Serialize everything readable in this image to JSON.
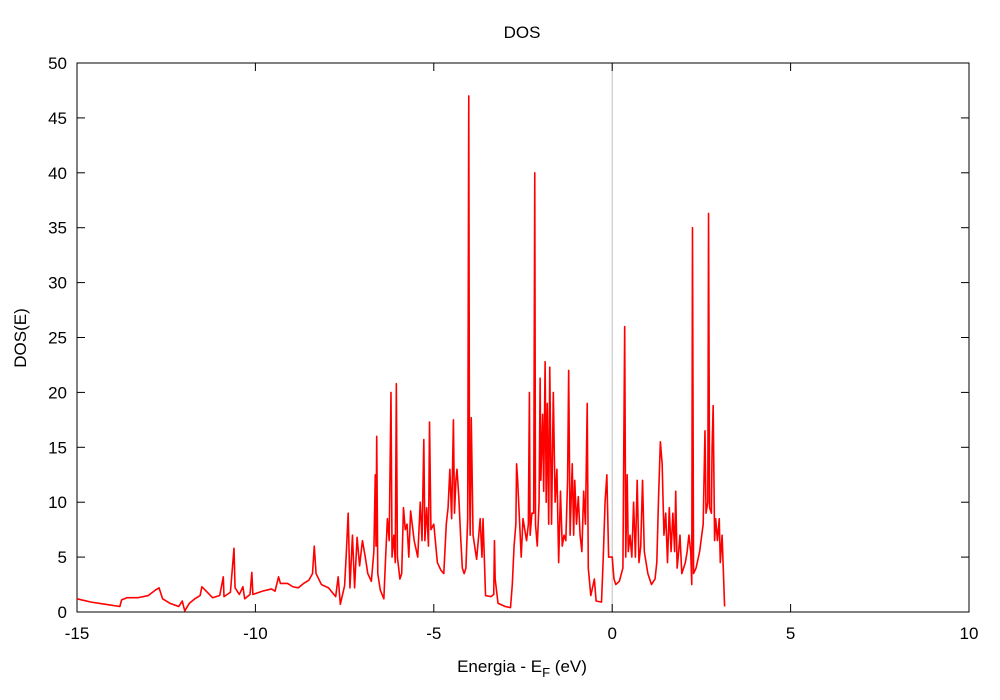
{
  "chart_data": {
    "type": "line",
    "title": "DOS",
    "xlabel": {
      "main": "Energia - E",
      "sub": "F",
      "suffix": " (eV)"
    },
    "ylabel": "DOS(E)",
    "xlim": [
      -15,
      10
    ],
    "ylim": [
      0,
      50
    ],
    "xticks": [
      -15,
      -10,
      -5,
      0,
      5,
      10
    ],
    "yticks": [
      0,
      5,
      10,
      15,
      20,
      25,
      30,
      35,
      40,
      45,
      50
    ],
    "grid": false,
    "legend": "none",
    "reference_line": {
      "x": 0,
      "color": "#c0c0c0"
    },
    "series": [
      {
        "color": "#ff0000",
        "points": [
          [
            -15.0,
            1.2
          ],
          [
            -14.6,
            0.9
          ],
          [
            -14.2,
            0.7
          ],
          [
            -13.8,
            0.5
          ],
          [
            -13.75,
            1.1
          ],
          [
            -13.6,
            1.3
          ],
          [
            -13.3,
            1.3
          ],
          [
            -13.0,
            1.5
          ],
          [
            -12.8,
            2.0
          ],
          [
            -12.7,
            2.2
          ],
          [
            -12.6,
            1.2
          ],
          [
            -12.4,
            0.8
          ],
          [
            -12.15,
            0.5
          ],
          [
            -12.05,
            1.0
          ],
          [
            -11.98,
            0.1
          ],
          [
            -11.85,
            0.8
          ],
          [
            -11.7,
            1.2
          ],
          [
            -11.55,
            1.5
          ],
          [
            -11.5,
            2.3
          ],
          [
            -11.35,
            1.8
          ],
          [
            -11.2,
            1.3
          ],
          [
            -11.0,
            1.5
          ],
          [
            -10.9,
            3.2
          ],
          [
            -10.88,
            1.4
          ],
          [
            -10.7,
            1.8
          ],
          [
            -10.6,
            5.8
          ],
          [
            -10.57,
            2.2
          ],
          [
            -10.45,
            1.6
          ],
          [
            -10.35,
            2.3
          ],
          [
            -10.3,
            1.2
          ],
          [
            -10.15,
            1.6
          ],
          [
            -10.1,
            3.6
          ],
          [
            -10.07,
            1.6
          ],
          [
            -9.8,
            1.9
          ],
          [
            -9.55,
            2.1
          ],
          [
            -9.45,
            1.9
          ],
          [
            -9.35,
            3.2
          ],
          [
            -9.3,
            2.6
          ],
          [
            -9.1,
            2.6
          ],
          [
            -8.95,
            2.3
          ],
          [
            -8.8,
            2.2
          ],
          [
            -8.65,
            2.6
          ],
          [
            -8.5,
            2.9
          ],
          [
            -8.4,
            3.5
          ],
          [
            -8.35,
            6.0
          ],
          [
            -8.3,
            3.5
          ],
          [
            -8.15,
            2.5
          ],
          [
            -7.95,
            2.2
          ],
          [
            -7.75,
            1.4
          ],
          [
            -7.68,
            3.2
          ],
          [
            -7.62,
            0.7
          ],
          [
            -7.5,
            2.4
          ],
          [
            -7.45,
            5.5
          ],
          [
            -7.4,
            9.0
          ],
          [
            -7.35,
            2.2
          ],
          [
            -7.28,
            7.0
          ],
          [
            -7.22,
            2.2
          ],
          [
            -7.15,
            6.8
          ],
          [
            -7.08,
            4.2
          ],
          [
            -7.0,
            6.5
          ],
          [
            -6.92,
            5.0
          ],
          [
            -6.85,
            3.5
          ],
          [
            -6.75,
            2.8
          ],
          [
            -6.68,
            5.5
          ],
          [
            -6.64,
            12.5
          ],
          [
            -6.62,
            6.0
          ],
          [
            -6.6,
            16.0
          ],
          [
            -6.57,
            3.5
          ],
          [
            -6.5,
            2.0
          ],
          [
            -6.4,
            1.2
          ],
          [
            -6.35,
            5.0
          ],
          [
            -6.3,
            8.5
          ],
          [
            -6.25,
            6.5
          ],
          [
            -6.2,
            20.0
          ],
          [
            -6.17,
            5.0
          ],
          [
            -6.12,
            7.0
          ],
          [
            -6.08,
            4.5
          ],
          [
            -6.05,
            20.8
          ],
          [
            -6.02,
            5.0
          ],
          [
            -5.95,
            3.0
          ],
          [
            -5.9,
            3.5
          ],
          [
            -5.85,
            9.5
          ],
          [
            -5.8,
            7.5
          ],
          [
            -5.75,
            8.0
          ],
          [
            -5.7,
            5.0
          ],
          [
            -5.65,
            9.2
          ],
          [
            -5.55,
            6.5
          ],
          [
            -5.45,
            5.0
          ],
          [
            -5.38,
            10.0
          ],
          [
            -5.33,
            6.5
          ],
          [
            -5.28,
            15.7
          ],
          [
            -5.25,
            6.5
          ],
          [
            -5.2,
            9.5
          ],
          [
            -5.15,
            6.0
          ],
          [
            -5.12,
            17.3
          ],
          [
            -5.08,
            7.5
          ],
          [
            -5.0,
            8.0
          ],
          [
            -4.9,
            4.5
          ],
          [
            -4.8,
            3.8
          ],
          [
            -4.72,
            3.5
          ],
          [
            -4.65,
            8.0
          ],
          [
            -4.6,
            9.5
          ],
          [
            -4.55,
            13.0
          ],
          [
            -4.5,
            8.5
          ],
          [
            -4.45,
            17.5
          ],
          [
            -4.42,
            9.0
          ],
          [
            -4.38,
            12.0
          ],
          [
            -4.35,
            13.0
          ],
          [
            -4.3,
            10.5
          ],
          [
            -4.25,
            7.0
          ],
          [
            -4.2,
            4.0
          ],
          [
            -4.15,
            3.5
          ],
          [
            -4.1,
            4.0
          ],
          [
            -4.05,
            8.5
          ],
          [
            -4.02,
            47.0
          ],
          [
            -4.0,
            12.0
          ],
          [
            -3.98,
            7.0
          ],
          [
            -3.95,
            17.7
          ],
          [
            -3.9,
            7.0
          ],
          [
            -3.8,
            4.8
          ],
          [
            -3.7,
            8.5
          ],
          [
            -3.65,
            5.0
          ],
          [
            -3.62,
            8.5
          ],
          [
            -3.58,
            4.5
          ],
          [
            -3.55,
            1.5
          ],
          [
            -3.4,
            1.4
          ],
          [
            -3.32,
            1.6
          ],
          [
            -3.3,
            6.5
          ],
          [
            -3.28,
            3.0
          ],
          [
            -3.2,
            0.8
          ],
          [
            -3.0,
            0.5
          ],
          [
            -2.85,
            0.4
          ],
          [
            -2.8,
            2.5
          ],
          [
            -2.75,
            6.0
          ],
          [
            -2.7,
            8.0
          ],
          [
            -2.68,
            13.5
          ],
          [
            -2.65,
            12.0
          ],
          [
            -2.6,
            8.5
          ],
          [
            -2.55,
            5.0
          ],
          [
            -2.5,
            8.5
          ],
          [
            -2.45,
            7.5
          ],
          [
            -2.4,
            6.5
          ],
          [
            -2.35,
            8.0
          ],
          [
            -2.32,
            20.0
          ],
          [
            -2.3,
            7.0
          ],
          [
            -2.25,
            9.0
          ],
          [
            -2.2,
            9.0
          ],
          [
            -2.17,
            40.0
          ],
          [
            -2.15,
            8.0
          ],
          [
            -2.1,
            6.0
          ],
          [
            -2.05,
            10.0
          ],
          [
            -2.02,
            21.3
          ],
          [
            -2.0,
            12.0
          ],
          [
            -1.95,
            18.0
          ],
          [
            -1.92,
            11.0
          ],
          [
            -1.88,
            22.8
          ],
          [
            -1.85,
            10.0
          ],
          [
            -1.82,
            19.0
          ],
          [
            -1.78,
            8.0
          ],
          [
            -1.75,
            22.3
          ],
          [
            -1.7,
            8.0
          ],
          [
            -1.65,
            20.0
          ],
          [
            -1.6,
            10.0
          ],
          [
            -1.55,
            13.0
          ],
          [
            -1.5,
            4.5
          ],
          [
            -1.45,
            11.0
          ],
          [
            -1.4,
            6.0
          ],
          [
            -1.35,
            7.0
          ],
          [
            -1.3,
            6.5
          ],
          [
            -1.25,
            12.0
          ],
          [
            -1.22,
            22.0
          ],
          [
            -1.18,
            7.0
          ],
          [
            -1.12,
            13.5
          ],
          [
            -1.08,
            7.0
          ],
          [
            -1.05,
            12.0
          ],
          [
            -1.0,
            8.0
          ],
          [
            -0.95,
            10.5
          ],
          [
            -0.9,
            7.0
          ],
          [
            -0.85,
            5.5
          ],
          [
            -0.8,
            11.0
          ],
          [
            -0.75,
            8.0
          ],
          [
            -0.7,
            19.0
          ],
          [
            -0.67,
            4.0
          ],
          [
            -0.6,
            1.5
          ],
          [
            -0.5,
            3.0
          ],
          [
            -0.45,
            1.0
          ],
          [
            -0.3,
            0.9
          ],
          [
            -0.25,
            5.0
          ],
          [
            -0.2,
            10.0
          ],
          [
            -0.15,
            12.5
          ],
          [
            -0.1,
            5.0
          ],
          [
            0.0,
            5.0
          ],
          [
            0.05,
            3.0
          ],
          [
            0.1,
            2.5
          ],
          [
            0.2,
            2.8
          ],
          [
            0.3,
            4.0
          ],
          [
            0.35,
            26.0
          ],
          [
            0.38,
            5.0
          ],
          [
            0.42,
            12.5
          ],
          [
            0.45,
            5.5
          ],
          [
            0.5,
            7.0
          ],
          [
            0.55,
            5.0
          ],
          [
            0.6,
            10.0
          ],
          [
            0.65,
            5.0
          ],
          [
            0.7,
            12.0
          ],
          [
            0.75,
            4.5
          ],
          [
            0.8,
            6.0
          ],
          [
            0.85,
            12.0
          ],
          [
            0.9,
            5.5
          ],
          [
            1.0,
            3.5
          ],
          [
            1.1,
            2.5
          ],
          [
            1.2,
            3.0
          ],
          [
            1.25,
            4.5
          ],
          [
            1.3,
            10.5
          ],
          [
            1.35,
            15.5
          ],
          [
            1.4,
            13.5
          ],
          [
            1.45,
            7.0
          ],
          [
            1.5,
            9.0
          ],
          [
            1.55,
            4.5
          ],
          [
            1.6,
            9.5
          ],
          [
            1.65,
            5.5
          ],
          [
            1.7,
            9.0
          ],
          [
            1.75,
            5.5
          ],
          [
            1.78,
            11.0
          ],
          [
            1.82,
            4.0
          ],
          [
            1.85,
            5.0
          ],
          [
            1.9,
            7.0
          ],
          [
            1.95,
            3.5
          ],
          [
            2.05,
            4.5
          ],
          [
            2.1,
            5.5
          ],
          [
            2.15,
            7.0
          ],
          [
            2.2,
            5.5
          ],
          [
            2.23,
            2.5
          ],
          [
            2.25,
            35.0
          ],
          [
            2.28,
            3.5
          ],
          [
            2.35,
            4.0
          ],
          [
            2.45,
            5.5
          ],
          [
            2.55,
            8.0
          ],
          [
            2.6,
            16.5
          ],
          [
            2.63,
            9.0
          ],
          [
            2.68,
            10.0
          ],
          [
            2.7,
            36.3
          ],
          [
            2.73,
            9.5
          ],
          [
            2.78,
            9.0
          ],
          [
            2.8,
            15.0
          ],
          [
            2.83,
            18.8
          ],
          [
            2.87,
            6.5
          ],
          [
            2.9,
            8.5
          ],
          [
            2.95,
            6.5
          ],
          [
            3.0,
            8.5
          ],
          [
            3.03,
            4.5
          ],
          [
            3.08,
            7.0
          ],
          [
            3.15,
            0.5
          ]
        ]
      }
    ]
  }
}
